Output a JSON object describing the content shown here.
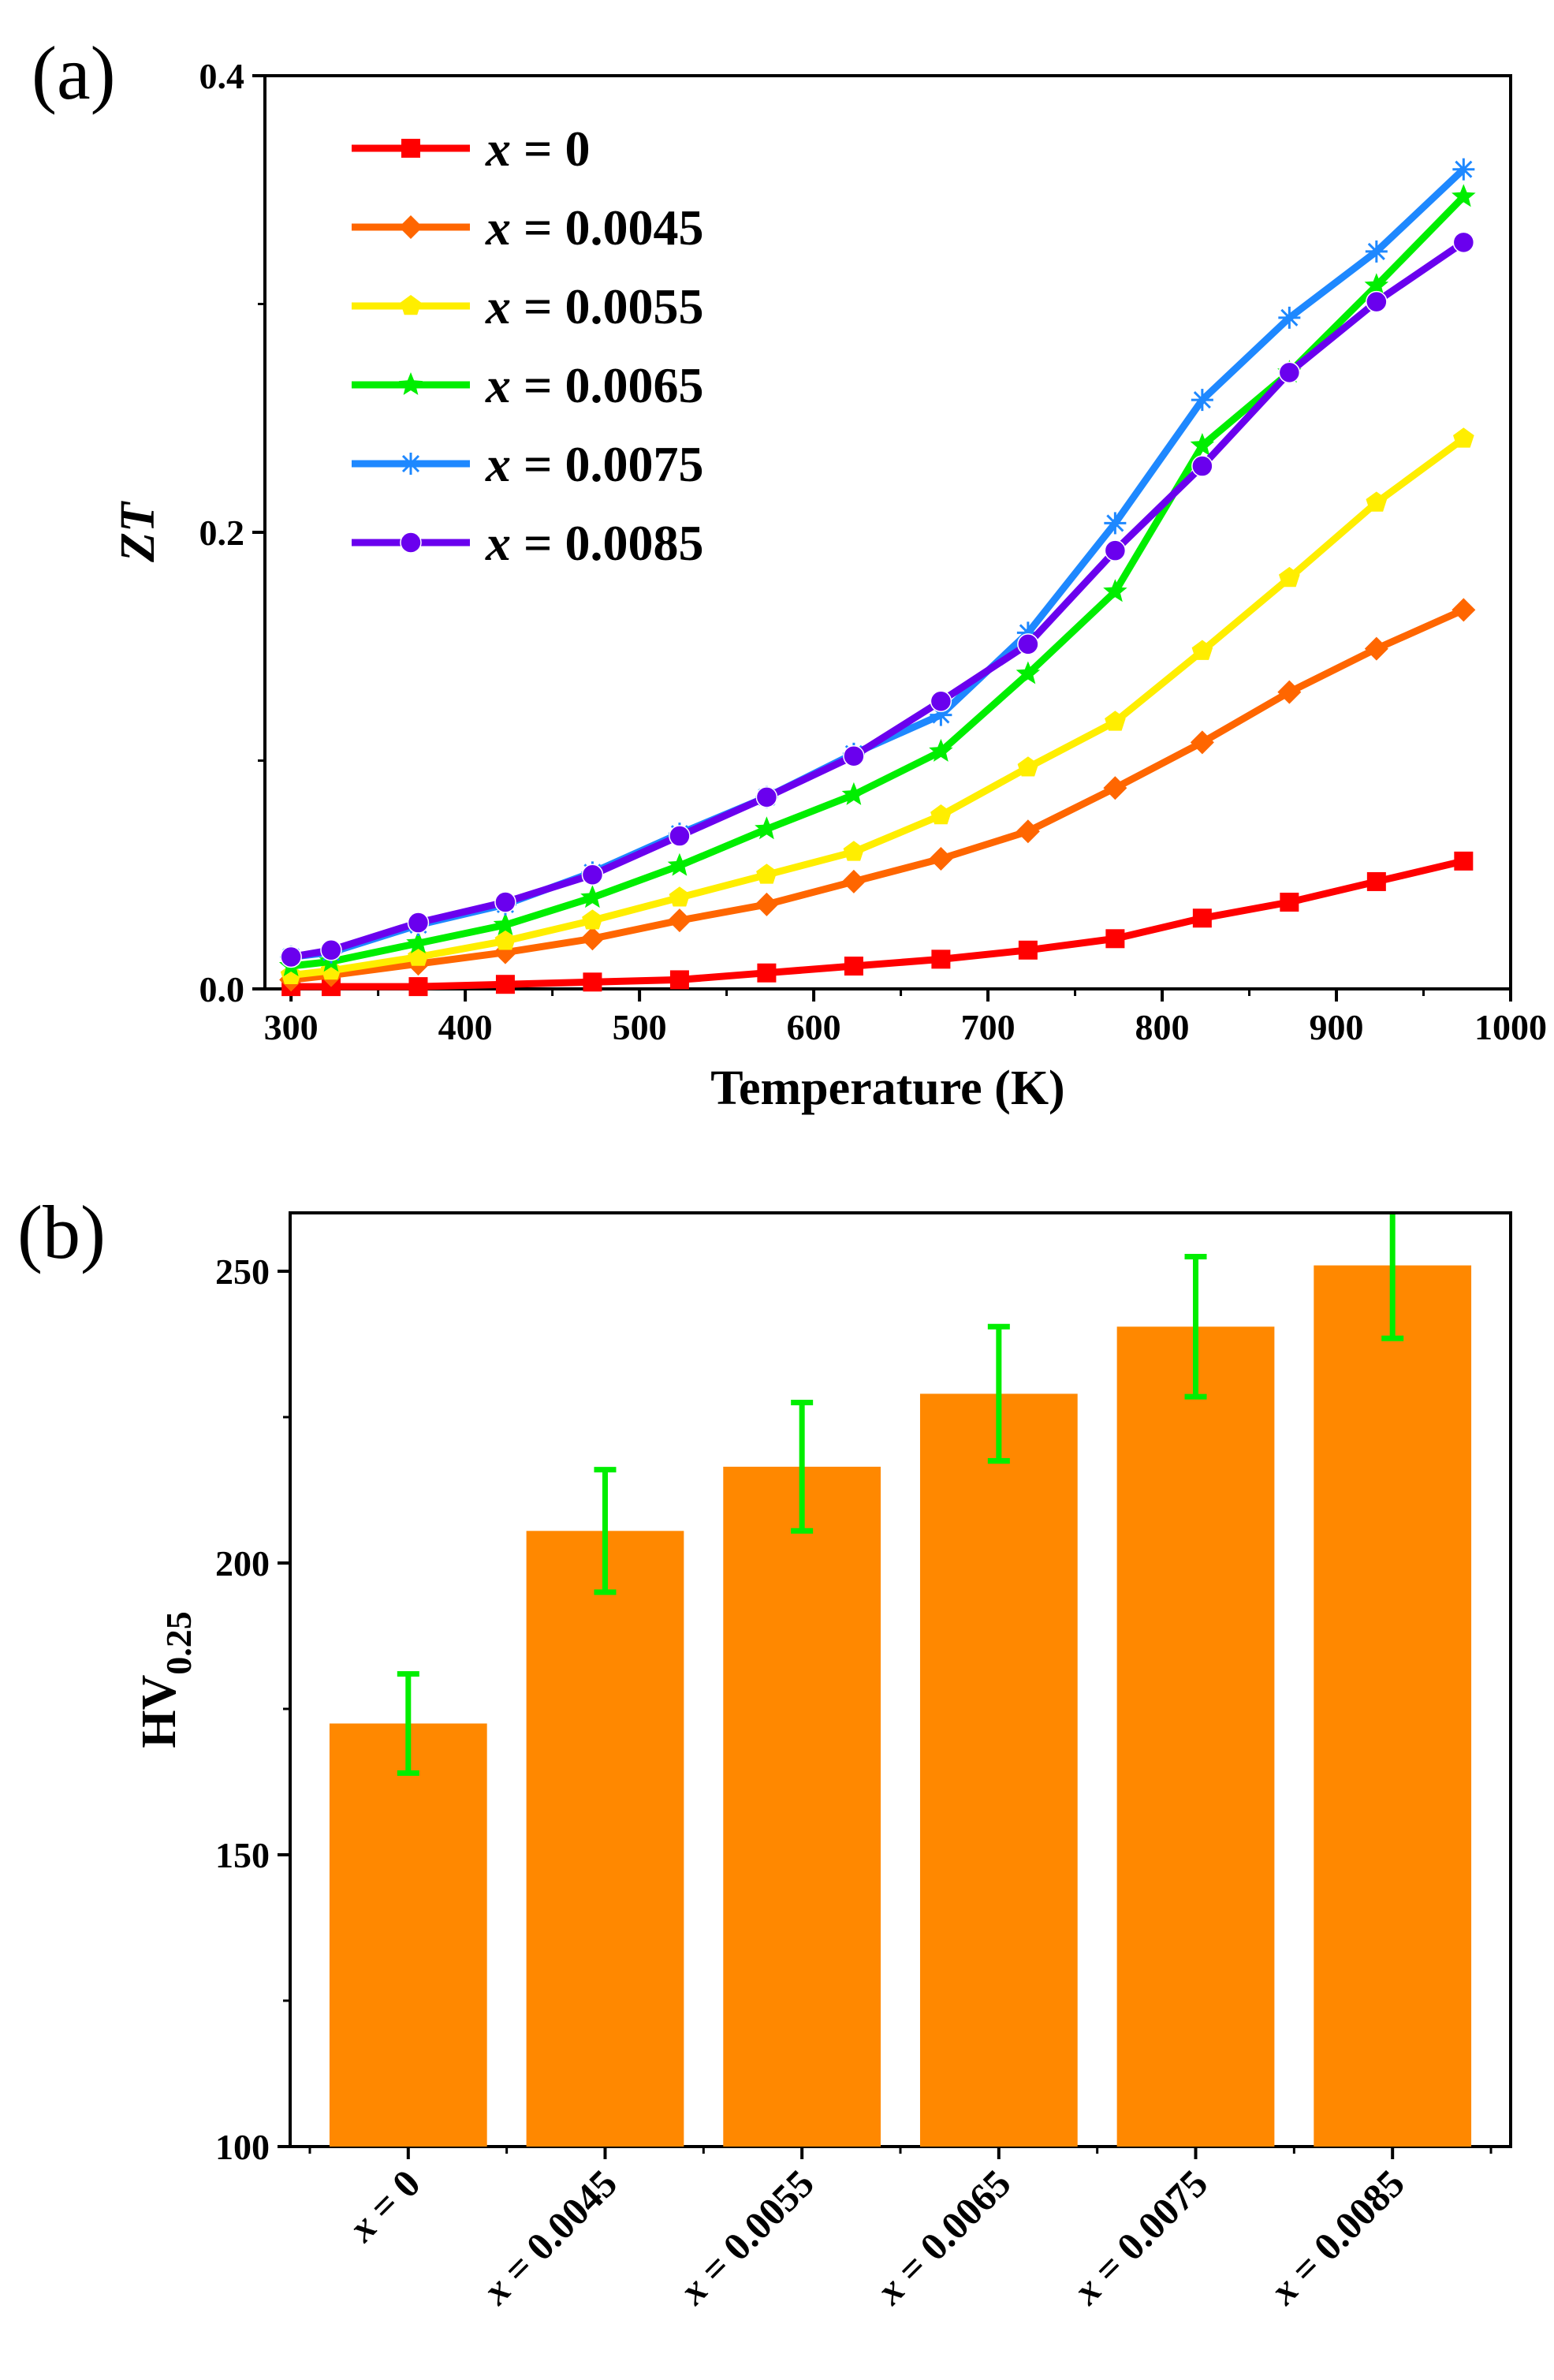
{
  "chart_data": [
    {
      "type": "line",
      "panel_label": "(a)",
      "xlabel": "Temperature (K)",
      "ylabel": "ZT",
      "xlim": [
        285,
        1000
      ],
      "ylim": [
        0,
        0.4
      ],
      "xticks": [
        300,
        400,
        500,
        600,
        700,
        800,
        900,
        1000
      ],
      "yticks": [
        0.0,
        0.2,
        0.4
      ],
      "ytick_labels": [
        "0.0",
        "0.2",
        "0.4"
      ],
      "legend_position": "top-left",
      "x": [
        300,
        323,
        373,
        423,
        473,
        523,
        573,
        623,
        673,
        723,
        773,
        823,
        873,
        923,
        973
      ],
      "series": [
        {
          "name": "x = 0",
          "var": "x",
          "value_text": " = 0",
          "color": "#ff0000",
          "marker": "square",
          "values": [
            0.001,
            0.001,
            0.001,
            0.002,
            0.003,
            0.004,
            0.007,
            0.01,
            0.013,
            0.017,
            0.022,
            0.031,
            0.038,
            0.047,
            0.056
          ]
        },
        {
          "name": "x = 0.0045",
          "var": "x",
          "value_text": " = 0.0045",
          "color": "#ff6600",
          "marker": "diamond",
          "values": [
            0.004,
            0.006,
            0.011,
            0.016,
            0.022,
            0.03,
            0.037,
            0.047,
            0.057,
            0.069,
            0.088,
            0.108,
            0.13,
            0.149,
            0.166
          ]
        },
        {
          "name": "x = 0.0055",
          "var": "x",
          "value_text": " = 0.0055",
          "color": "#ffee00",
          "marker": "pentagon",
          "values": [
            0.006,
            0.008,
            0.014,
            0.021,
            0.03,
            0.04,
            0.05,
            0.06,
            0.076,
            0.097,
            0.117,
            0.148,
            0.18,
            0.213,
            0.241
          ]
        },
        {
          "name": "x = 0.0065",
          "var": "x",
          "value_text": " = 0.0065",
          "color": "#00ee00",
          "marker": "star",
          "values": [
            0.01,
            0.012,
            0.02,
            0.028,
            0.04,
            0.054,
            0.07,
            0.085,
            0.104,
            0.138,
            0.174,
            0.238,
            0.27,
            0.308,
            0.347
          ]
        },
        {
          "name": "x = 0.0075",
          "var": "x",
          "value_text": " = 0.0075",
          "color": "#1e88ff",
          "marker": "asterisk",
          "values": [
            0.014,
            0.016,
            0.028,
            0.037,
            0.051,
            0.068,
            0.084,
            0.103,
            0.12,
            0.156,
            0.204,
            0.258,
            0.294,
            0.323,
            0.359
          ]
        },
        {
          "name": "x = 0.0085",
          "var": "x",
          "value_text": " = 0.0085",
          "color": "#6a00ee",
          "marker": "circle",
          "values": [
            0.014,
            0.017,
            0.029,
            0.038,
            0.05,
            0.067,
            0.084,
            0.102,
            0.126,
            0.151,
            0.192,
            0.229,
            0.27,
            0.301,
            0.327
          ]
        }
      ]
    },
    {
      "type": "bar",
      "panel_label": "(b)",
      "ylabel_main": "HV",
      "ylabel_sub": "0.25",
      "ylim": [
        100,
        260
      ],
      "yticks": [
        100,
        150,
        200,
        250
      ],
      "bar_color": "#ff8800",
      "error_color": "#00ee00",
      "categories": [
        {
          "var": "x",
          "value_text": " = 0"
        },
        {
          "var": "x",
          "value_text": " = 0.0045"
        },
        {
          "var": "x",
          "value_text": " = 0.0055"
        },
        {
          "var": "x",
          "value_text": " = 0.0065"
        },
        {
          "var": "x",
          "value_text": " = 0.0075"
        },
        {
          "var": "x",
          "value_text": " = 0.0085"
        }
      ],
      "values": [
        172.5,
        205.5,
        216.5,
        229,
        240.5,
        251
      ],
      "errors": [
        8.5,
        10.5,
        11,
        11.5,
        12,
        12.5
      ]
    }
  ]
}
